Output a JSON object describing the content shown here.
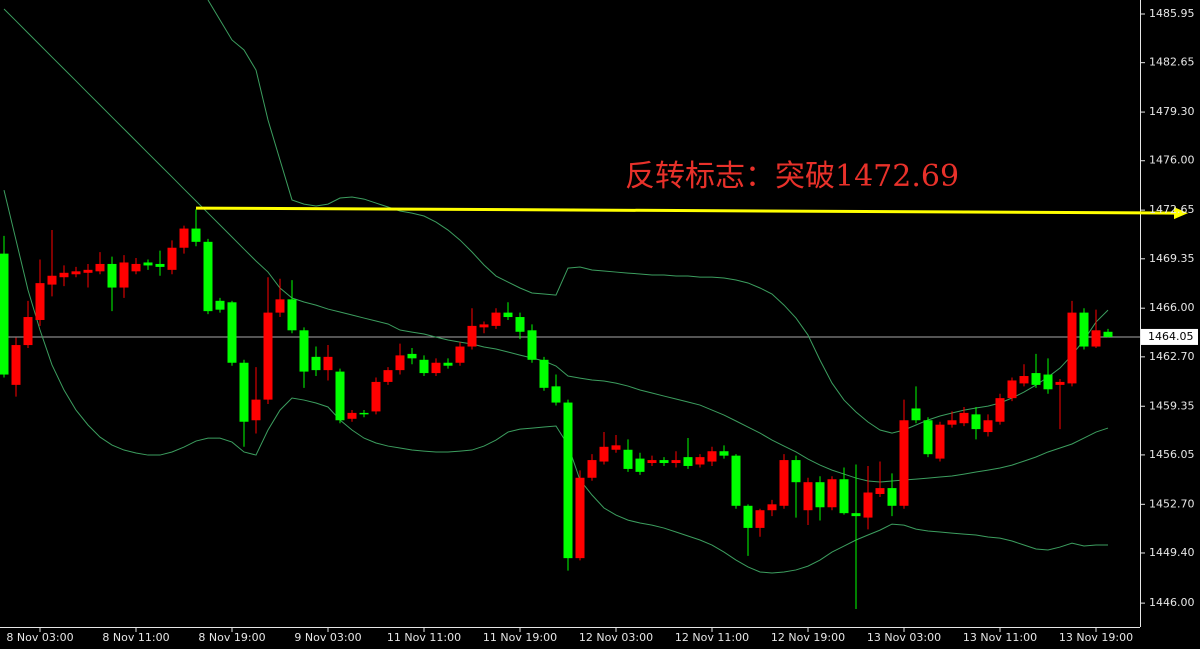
{
  "chart_data": {
    "type": "candlestick",
    "annotation": "反转标志：突破1472.69",
    "categories": [
      null,
      null,
      null,
      "8 Nov 03:00",
      null,
      null,
      null,
      null,
      null,
      null,
      null,
      "8 Nov 11:00",
      null,
      null,
      null,
      null,
      null,
      null,
      null,
      "8 Nov 19:00",
      null,
      null,
      null,
      null,
      null,
      null,
      null,
      "9 Nov 03:00",
      null,
      null,
      null,
      null,
      null,
      null,
      null,
      "11 Nov 11:00",
      null,
      null,
      null,
      null,
      null,
      null,
      null,
      "11 Nov 19:00",
      null,
      null,
      null,
      null,
      null,
      null,
      null,
      "12 Nov 03:00",
      null,
      null,
      null,
      null,
      null,
      null,
      null,
      "12 Nov 11:00",
      null,
      null,
      null,
      null,
      null,
      null,
      null,
      "12 Nov 19:00",
      null,
      null,
      null,
      null,
      null,
      null,
      null,
      "13 Nov 03:00",
      null,
      null,
      null,
      null,
      null,
      null,
      null,
      "13 Nov 11:00",
      null,
      null,
      null,
      null,
      null,
      null,
      null,
      "13 Nov 19:00",
      null
    ],
    "open": [
      1469.7,
      1460.8,
      1463.5,
      1465.2,
      1467.6,
      1468.1,
      1468.3,
      1468.4,
      1468.5,
      1469.0,
      1467.4,
      1468.5,
      1469.1,
      1469.0,
      1468.6,
      1470.1,
      1471.4,
      1470.5,
      1466.5,
      1466.4,
      1462.3,
      1458.4,
      1459.8,
      1465.7,
      1466.6,
      1464.5,
      1462.7,
      1461.8,
      1461.7,
      1458.5,
      1458.9,
      1459.0,
      1461.0,
      1461.8,
      1462.9,
      1462.5,
      1461.6,
      1462.3,
      1462.3,
      1463.4,
      1464.7,
      1464.8,
      1465.7,
      1465.4,
      1464.5,
      1462.5,
      1460.7,
      1459.6,
      1449.05,
      1454.5,
      1455.6,
      1456.4,
      1456.4,
      1455.8,
      1455.5,
      1455.7,
      1455.5,
      1455.9,
      1455.4,
      1455.6,
      1456.3,
      1456.0,
      1452.6,
      1451.1,
      1452.3,
      1452.6,
      1455.7,
      1452.3,
      1454.2,
      1452.5,
      1454.4,
      1452.1,
      1451.8,
      1453.4,
      1453.8,
      1452.6,
      1459.2,
      1458.4,
      1455.8,
      1458.1,
      1458.2,
      1458.8,
      1457.6,
      1458.3,
      1459.9,
      1460.9,
      1461.6,
      1461.5,
      1460.8,
      1460.9,
      1465.7,
      1463.4,
      1464.4
    ],
    "high": [
      1470.9,
      1464.0,
      1466.5,
      1469.3,
      1471.3,
      1468.9,
      1468.8,
      1469.0,
      1469.8,
      1469.5,
      1469.6,
      1469.4,
      1469.3,
      1469.9,
      1470.6,
      1471.6,
      1472.7,
      1470.7,
      1466.7,
      1466.5,
      1462.5,
      1462.0,
      1468.1,
      1468.0,
      1467.9,
      1464.7,
      1463.4,
      1463.5,
      1461.9,
      1459.1,
      1459.1,
      1461.3,
      1462.0,
      1463.6,
      1463.3,
      1462.8,
      1462.6,
      1462.6,
      1463.7,
      1466.0,
      1465.1,
      1466.0,
      1466.4,
      1465.7,
      1464.9,
      1462.7,
      1461.5,
      1459.8,
      1455.0,
      1456.1,
      1457.6,
      1457.4,
      1457.1,
      1456.2,
      1456.0,
      1455.9,
      1456.3,
      1457.2,
      1456.1,
      1456.6,
      1456.7,
      1456.1,
      1452.7,
      1452.4,
      1453.0,
      1456.1,
      1456.0,
      1454.5,
      1454.6,
      1454.6,
      1455.2,
      1455.4,
      1455.3,
      1455.6,
      1454.8,
      1459.8,
      1460.7,
      1458.6,
      1458.3,
      1459.0,
      1459.3,
      1459.3,
      1458.8,
      1460.2,
      1461.3,
      1462.2,
      1462.9,
      1462.6,
      1461.2,
      1466.5,
      1466.0,
      1465.9,
      1464.6
    ],
    "low": [
      1461.3,
      1460.0,
      1463.3,
      1464.8,
      1466.8,
      1467.5,
      1468.1,
      1467.4,
      1468.3,
      1465.8,
      1466.7,
      1468.3,
      1468.6,
      1468.2,
      1468.3,
      1469.7,
      1470.2,
      1465.6,
      1465.7,
      1462.1,
      1456.6,
      1457.5,
      1459.5,
      1465.4,
      1464.3,
      1460.6,
      1461.4,
      1461.1,
      1458.2,
      1458.3,
      1458.6,
      1458.8,
      1460.8,
      1461.5,
      1462.2,
      1461.4,
      1461.4,
      1461.9,
      1462.1,
      1463.2,
      1464.3,
      1464.6,
      1465.2,
      1463.9,
      1462.3,
      1460.4,
      1459.4,
      1448.2,
      1448.9,
      1454.3,
      1455.4,
      1456.2,
      1454.9,
      1454.7,
      1455.3,
      1455.3,
      1455.2,
      1455.1,
      1455.2,
      1455.3,
      1455.8,
      1452.4,
      1449.2,
      1450.5,
      1451.9,
      1452.4,
      1451.8,
      1451.3,
      1451.6,
      1452.3,
      1452.0,
      1445.6,
      1451.0,
      1453.2,
      1451.9,
      1452.4,
      1458.2,
      1455.9,
      1455.6,
      1457.9,
      1458.0,
      1457.1,
      1457.3,
      1458.1,
      1459.7,
      1460.7,
      1460.6,
      1460.2,
      1457.8,
      1460.7,
      1463.2,
      1463.3,
      1464.0
    ],
    "close": [
      1461.5,
      1463.5,
      1465.4,
      1467.7,
      1468.2,
      1468.4,
      1468.5,
      1468.6,
      1469.0,
      1467.4,
      1469.1,
      1469.0,
      1468.9,
      1468.8,
      1470.1,
      1471.4,
      1470.5,
      1465.8,
      1465.9,
      1462.3,
      1458.3,
      1459.8,
      1465.7,
      1466.6,
      1464.5,
      1461.7,
      1461.8,
      1462.7,
      1458.4,
      1458.9,
      1458.8,
      1461.0,
      1461.8,
      1462.8,
      1462.6,
      1461.6,
      1462.3,
      1462.1,
      1463.4,
      1464.8,
      1464.9,
      1465.7,
      1465.4,
      1464.4,
      1462.5,
      1460.6,
      1459.6,
      1449.05,
      1454.5,
      1455.7,
      1456.6,
      1456.7,
      1455.1,
      1454.9,
      1455.7,
      1455.5,
      1455.7,
      1455.3,
      1455.9,
      1456.3,
      1456.0,
      1452.6,
      1451.1,
      1452.3,
      1452.7,
      1455.7,
      1454.2,
      1454.2,
      1452.5,
      1454.4,
      1452.1,
      1451.9,
      1453.5,
      1453.8,
      1452.6,
      1458.4,
      1458.4,
      1456.1,
      1458.1,
      1458.4,
      1458.9,
      1457.8,
      1458.4,
      1459.9,
      1461.1,
      1461.4,
      1460.8,
      1460.5,
      1461.0,
      1465.7,
      1463.4,
      1464.5,
      1464.05
    ],
    "up_color": "#ff0000",
    "down_color": "#00ff00",
    "bands": {
      "color": "#3c9e5f",
      "upper": [
        null,
        null,
        null,
        null,
        null,
        null,
        null,
        null,
        null,
        null,
        null,
        null,
        null,
        null,
        null,
        null,
        null,
        1486.9,
        1485.54,
        1484.19,
        1483.51,
        1482.15,
        1478.76,
        1476.05,
        1473.34,
        1473.06,
        1472.93,
        1473.06,
        1473.47,
        1473.54,
        1473.4,
        1473.13,
        1472.86,
        1472.59,
        1472.45,
        1472.25,
        1471.84,
        1471.3,
        1470.62,
        1469.81,
        1468.93,
        1468.18,
        1467.77,
        1467.37,
        1467.03,
        1466.96,
        1466.89,
        1468.72,
        1468.79,
        1468.59,
        1468.52,
        1468.45,
        1468.38,
        1468.32,
        1468.25,
        1468.25,
        1468.18,
        1468.18,
        1468.11,
        1468.11,
        1468.05,
        1467.91,
        1467.71,
        1467.37,
        1466.96,
        1466.21,
        1465.33,
        1464.18,
        1462.48,
        1460.92,
        1459.77,
        1458.96,
        1458.28,
        1457.74,
        1457.53,
        1457.74,
        1458.08,
        1458.42,
        1458.69,
        1458.89,
        1459.09,
        1459.23,
        1459.36,
        1459.57,
        1459.91,
        1460.31,
        1460.79,
        1461.33,
        1461.94,
        1462.82,
        1463.84,
        1465.06,
        1465.87
      ],
      "middle": [
        1486.29,
        1485.48,
        1484.66,
        1483.85,
        1483.03,
        1482.22,
        1481.41,
        1480.59,
        1479.78,
        1478.96,
        1478.15,
        1477.34,
        1476.52,
        1475.71,
        1474.9,
        1474.08,
        1473.27,
        1472.45,
        1471.64,
        1470.83,
        1470.01,
        1469.2,
        1468.45,
        1467.37,
        1466.69,
        1466.42,
        1466.21,
        1465.94,
        1465.74,
        1465.54,
        1465.33,
        1465.13,
        1464.93,
        1464.52,
        1464.38,
        1464.25,
        1464.04,
        1463.84,
        1463.7,
        1463.57,
        1463.37,
        1463.23,
        1463.03,
        1462.82,
        1462.62,
        1462.42,
        1462.08,
        1461.4,
        1461.26,
        1461.13,
        1461.06,
        1460.92,
        1460.72,
        1460.45,
        1460.25,
        1460.04,
        1459.84,
        1459.64,
        1459.43,
        1459.09,
        1458.75,
        1458.35,
        1457.94,
        1457.53,
        1457.06,
        1456.65,
        1456.25,
        1455.77,
        1455.36,
        1455.02,
        1454.75,
        1454.48,
        1454.28,
        1454.21,
        1454.28,
        1454.35,
        1454.41,
        1454.48,
        1454.55,
        1454.62,
        1454.75,
        1454.89,
        1455.02,
        1455.16,
        1455.36,
        1455.63,
        1455.91,
        1456.25,
        1456.52,
        1456.79,
        1457.19,
        1457.6,
        1457.87
      ],
      "lower": [
        1474.01,
        1470.62,
        1467.23,
        1464.52,
        1462.15,
        1460.45,
        1459.09,
        1458.08,
        1457.26,
        1456.72,
        1456.38,
        1456.18,
        1456.04,
        1456.04,
        1456.25,
        1456.58,
        1456.99,
        1457.19,
        1457.19,
        1456.92,
        1456.25,
        1456.04,
        1457.74,
        1459.09,
        1459.91,
        1459.77,
        1459.57,
        1459.3,
        1458.42,
        1457.74,
        1457.19,
        1456.86,
        1456.65,
        1456.52,
        1456.38,
        1456.31,
        1456.25,
        1456.25,
        1456.31,
        1456.38,
        1456.65,
        1457.06,
        1457.6,
        1457.8,
        1457.87,
        1457.94,
        1458.01,
        1456.72,
        1454.35,
        1453.33,
        1452.45,
        1451.97,
        1451.63,
        1451.43,
        1451.29,
        1451.09,
        1450.82,
        1450.55,
        1450.28,
        1449.94,
        1449.46,
        1448.92,
        1448.45,
        1448.11,
        1448.04,
        1448.11,
        1448.25,
        1448.51,
        1448.92,
        1449.46,
        1449.87,
        1450.28,
        1450.62,
        1450.95,
        1451.36,
        1451.29,
        1451.02,
        1450.89,
        1450.82,
        1450.75,
        1450.68,
        1450.62,
        1450.48,
        1450.41,
        1450.21,
        1449.94,
        1449.67,
        1449.6,
        1449.8,
        1450.07,
        1449.87,
        1449.94,
        1449.94
      ]
    },
    "trendline": {
      "values": [
        1472.79,
        1472.45
      ],
      "color": "#ffff00"
    },
    "current_price": 1464.05,
    "ylim": [
      1444.38,
      1486.9
    ],
    "yticks": [
      1485.95,
      1482.65,
      {
        "value": 1479.3,
        "label": "1479.30"
      },
      {
        "value": 1476,
        "label": "1476.00"
      },
      1472.65,
      1469.35,
      {
        "value": 1466,
        "label": "1466.00"
      },
      {
        "value": 1462.7,
        "label": "1462.70"
      },
      1459.35,
      1456.05,
      {
        "value": 1452.7,
        "label": "1452.70"
      },
      {
        "value": 1449.4,
        "label": "1449.40"
      },
      {
        "value": 1446,
        "label": "1446.00"
      }
    ]
  }
}
